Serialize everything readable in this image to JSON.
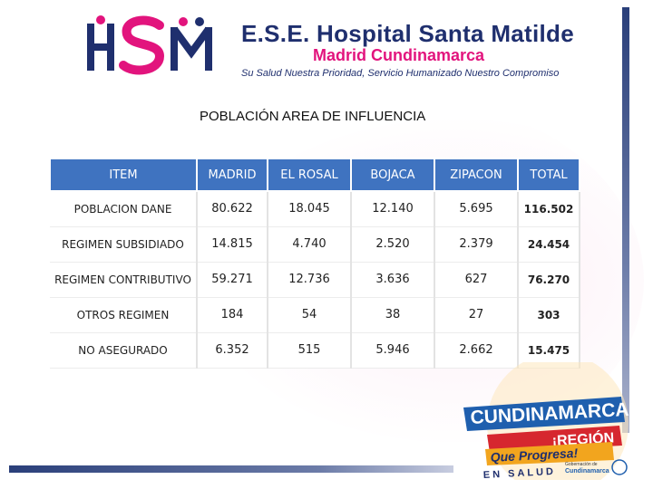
{
  "header": {
    "title": "E.S.E. Hospital Santa Matilde",
    "subtitle": "Madrid Cundinamarca",
    "slogan": "Su Salud Nuestra Prioridad, Servicio Humanizado Nuestro Compromiso",
    "logo_text": "HSM"
  },
  "page_title": "POBLACIÓN AREA DE INFLUENCIA",
  "table": {
    "columns": [
      "ITEM",
      "MADRID",
      "EL ROSAL",
      "BOJACA",
      "ZIPACON",
      "TOTAL"
    ],
    "rows": [
      [
        "POBLACION DANE",
        "80.622",
        "18.045",
        "12.140",
        "5.695",
        "116.502"
      ],
      [
        "REGIMEN SUBSIDIADO",
        "14.815",
        "4.740",
        "2.520",
        "2.379",
        "24.454"
      ],
      [
        "REGIMEN CONTRIBUTIVO",
        "59.271",
        "12.736",
        "3.636",
        "627",
        "76.270"
      ],
      [
        "OTROS REGIMEN",
        "184",
        "54",
        "38",
        "27",
        "303"
      ],
      [
        "NO ASEGURADO",
        "6.352",
        "515",
        "5.946",
        "2.662",
        "15.475"
      ]
    ]
  },
  "badge": {
    "line1": "CUNDINAMARCA",
    "line2": "¡REGIÓN",
    "line3": "Que Progresa!",
    "line4": "EN SALUD",
    "gov_label": "Gobernación de",
    "gov_name": "Cundinamarca"
  },
  "colors": {
    "header_blue": "#3f73c0",
    "brand_navy": "#1f2f6e",
    "brand_pink": "#e2147d"
  }
}
